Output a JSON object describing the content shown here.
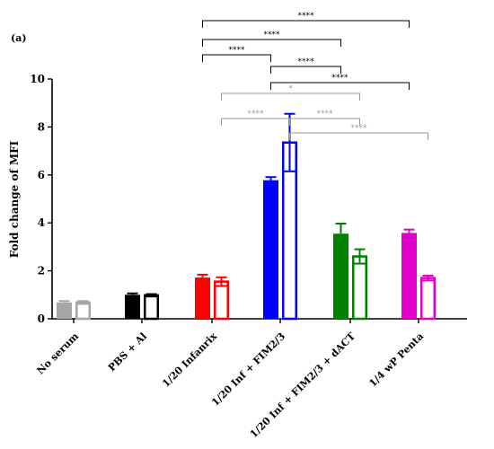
{
  "panel_label": "(a)",
  "chart_data": {
    "type": "bar",
    "ylabel": "Fold change of MFI",
    "xlabel": "",
    "ylim": [
      0,
      10
    ],
    "yticks": [
      0,
      2,
      4,
      6,
      8,
      10
    ],
    "grid": false,
    "categories": [
      "No serum",
      "PBS + Al",
      "1/20 Infanrix",
      "1/20 Inf + FIM2/3",
      "1/20 Inf + FIM2/3 + dACT",
      "1/4 wP Penta"
    ],
    "colors": [
      "#a6a6a6",
      "#000000",
      "#ff0000",
      "#0000ff",
      "#008000",
      "#e000c8"
    ],
    "series": [
      {
        "fill": "solid",
        "values": [
          0.68,
          1.0,
          1.72,
          5.78,
          3.55,
          3.58
        ],
        "errors": [
          0.06,
          0.06,
          0.12,
          0.13,
          0.42,
          0.14
        ]
      },
      {
        "fill": "hollow",
        "values": [
          0.68,
          0.98,
          1.55,
          7.35,
          2.6,
          1.7
        ],
        "errors": [
          0.06,
          0.05,
          0.18,
          1.2,
          0.3,
          0.1
        ]
      }
    ],
    "annotations": {
      "upper": [
        {
          "from": [
            2,
            0
          ],
          "to": [
            5,
            0
          ],
          "label": "****"
        },
        {
          "from": [
            2,
            0
          ],
          "to": [
            4,
            0
          ],
          "label": "****"
        },
        {
          "from": [
            2,
            0
          ],
          "to": [
            3,
            0
          ],
          "label": "****"
        },
        {
          "from": [
            3,
            0
          ],
          "to": [
            4,
            0
          ],
          "label": "****"
        },
        {
          "from": [
            3,
            0
          ],
          "to": [
            5,
            0
          ],
          "label": "****"
        }
      ],
      "lower": [
        {
          "from": [
            2,
            1
          ],
          "to": [
            4,
            1
          ],
          "label": "*"
        },
        {
          "from": [
            2,
            1
          ],
          "to": [
            3,
            1
          ],
          "label": "****"
        },
        {
          "from": [
            3,
            1
          ],
          "to": [
            4,
            1
          ],
          "label": "****"
        },
        {
          "from": [
            3,
            1
          ],
          "to": [
            5,
            1
          ],
          "label": "****"
        }
      ]
    }
  }
}
